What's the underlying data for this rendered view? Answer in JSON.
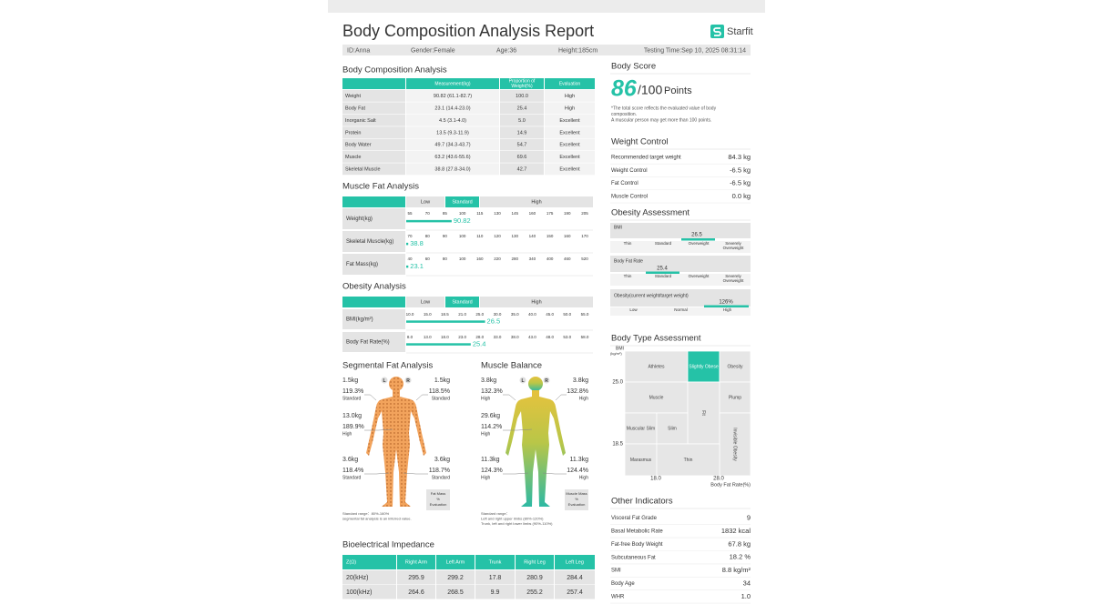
{
  "header": {
    "title": "Body Composition Analysis Report",
    "brand": "Starfit"
  },
  "info": [
    "ID:Anna",
    "Gender:Female",
    "Age:36",
    "Height:185cm",
    "Testing Time:Sep 10, 2025 08:31:14"
  ],
  "composition": {
    "title": "Body Composition Analysis",
    "columns": [
      "Measurement(kg)",
      [
        "Proportion of",
        "Weight(%)"
      ],
      "Evaluation"
    ],
    "rows": [
      [
        "Weight",
        "90.82 (61.1-82.7)",
        "100.0",
        "High"
      ],
      [
        "Body Fat",
        "23.1 (14.4-23.0)",
        "25.4",
        "High"
      ],
      [
        "Inorganic Salt",
        "4.5 (3.1-4.0)",
        "5.0",
        "Excellent"
      ],
      [
        "Protein",
        "13.5 (9.3-11.9)",
        "14.9",
        "Excellent"
      ],
      [
        "Body Water",
        "49.7 (34.3-43.7)",
        "54.7",
        "Excellent"
      ],
      [
        "Muscle",
        "63.2 (43.6-55.6)",
        "69.6",
        "Excellent"
      ],
      [
        "Skeletal Muscle",
        "38.8 (27.8-34.0)",
        "42.7",
        "Excellent"
      ]
    ]
  },
  "muscle_fat": {
    "title": "Muscle Fat Analysis",
    "levels": [
      "Low",
      "Standard",
      "High"
    ],
    "rows": [
      {
        "label": "Weight(kg)",
        "ticks": [
          "55",
          "70",
          "85",
          "100",
          "115",
          "130",
          "145",
          "160",
          "175",
          "190",
          "205"
        ],
        "value": 90.82
      },
      {
        "label": "Skeletal Muscle(kg)",
        "ticks": [
          "70",
          "80",
          "90",
          "100",
          "110",
          "120",
          "130",
          "140",
          "150",
          "160",
          "170"
        ],
        "value": 38.8
      },
      {
        "label": "Fat Mass(kg)",
        "ticks": [
          "40",
          "60",
          "80",
          "100",
          "160",
          "220",
          "280",
          "340",
          "400",
          "460",
          "520"
        ],
        "value": 23.1
      }
    ]
  },
  "obesity_analysis": {
    "title": "Obesity Analysis",
    "levels": [
      "Low",
      "Standard",
      "High"
    ],
    "rows": [
      {
        "label": "BMI(kg/m²)",
        "ticks": [
          "10.0",
          "15.0",
          "18.5",
          "21.0",
          "25.0",
          "30.0",
          "35.0",
          "40.0",
          "45.0",
          "50.0",
          "55.0"
        ],
        "value": 26.5
      },
      {
        "label": "Body Fat Rate(%)",
        "ticks": [
          "8.0",
          "13.0",
          "18.0",
          "23.0",
          "28.0",
          "33.0",
          "38.0",
          "43.0",
          "48.0",
          "53.0",
          "58.0"
        ],
        "value": 25.4
      }
    ]
  },
  "segmental_fat": {
    "title": "Segmental Fat Analysis",
    "sides": [
      "L",
      "R"
    ],
    "parts": [
      {
        "mass": "1.5kg",
        "percent": "119.3%",
        "evaluation": "Standard"
      },
      {
        "mass": "1.5kg",
        "percent": "118.5%",
        "evaluation": "Standard"
      },
      {
        "mass": "13.0kg",
        "percent": "189.9%",
        "evaluation": "High"
      },
      {
        "mass": "3.6kg",
        "percent": "118.4%",
        "evaluation": "Standard"
      },
      {
        "mass": "3.6kg",
        "percent": "118.7%",
        "evaluation": "Standard"
      }
    ],
    "legend": [
      "Fat Mass",
      "%",
      "Evaluation"
    ],
    "notes": [
      "Standard range：80%-160%",
      "segmental fat analysis is an inferred value."
    ]
  },
  "muscle_balance": {
    "title": "Muscle Balance",
    "sides": [
      "L",
      "R"
    ],
    "parts": [
      {
        "mass": "3.8kg",
        "percent": "132.3%",
        "evaluation": "High"
      },
      {
        "mass": "3.8kg",
        "percent": "132.8%",
        "evaluation": "High"
      },
      {
        "mass": "29.6kg",
        "percent": "114.2%",
        "evaluation": "High"
      },
      {
        "mass": "11.3kg",
        "percent": "124.3%",
        "evaluation": "High"
      },
      {
        "mass": "11.3kg",
        "percent": "124.4%",
        "evaluation": "High"
      }
    ],
    "legend": [
      "Muscle Mass",
      "%",
      "Evaluation"
    ],
    "notes": [
      "Standard range：",
      "Left and right upper limbs (80%-120%)",
      "Trunk, left and right lower limbs (90%-110%)"
    ]
  },
  "impedance": {
    "title": "Bioelectrical Impedance",
    "columns": [
      "Z(Ω)",
      "Right Arm",
      "Left Arm",
      "Trunk",
      "Right Leg",
      "Left Leg"
    ],
    "rows": [
      [
        "20(kHz)",
        "295.9",
        "299.2",
        "17.8",
        "280.9",
        "284.4"
      ],
      [
        "100(kHz)",
        "264.6",
        "268.5",
        "9.9",
        "255.2",
        "257.4"
      ]
    ]
  },
  "body_score": {
    "title": "Body Score",
    "score": 86,
    "max": "/100",
    "unit": "Points",
    "notes": [
      "*The total score reflects the evaluated value of body",
      "composition.",
      "A muscular person may get more than 100 points."
    ]
  },
  "weight_control": {
    "title": "Weight Control",
    "rows": [
      [
        "Recommended target weight",
        "84.3 kg"
      ],
      [
        "Weight Control",
        "-6.5 kg"
      ],
      [
        "Fat Control",
        "-6.5 kg"
      ],
      [
        "Muscle Control",
        "0.0 kg"
      ]
    ]
  },
  "obesity_assessment": {
    "title": "Obesity Assessment",
    "items": [
      {
        "label": "BMI",
        "value": 26.5,
        "levels": [
          "Thin",
          "Standard",
          "Overweight",
          [
            "Severely",
            "Overweight"
          ]
        ]
      },
      {
        "label": "Body Fat Rate",
        "value": 25.4,
        "levels": [
          "Thin",
          "Standard",
          "Overweight",
          [
            "Severely",
            "Overweight"
          ]
        ]
      },
      {
        "label": "Obesity(current weight/target weight)",
        "value": 126,
        "value_label": "126%",
        "levels": [
          "Low",
          "Normal",
          "High"
        ]
      }
    ]
  },
  "body_type": {
    "title": "Body Type Assessment",
    "y_label": [
      "BMI",
      "(kg/m²)"
    ],
    "x_label": "Body Fat Rate(%)",
    "yticks": [
      "25.0",
      "18.5"
    ],
    "xticks": [
      "18.0",
      "28.0"
    ],
    "cells": [
      {
        "label": "Athletes"
      },
      {
        "label": "Slightly Obese",
        "selected": true
      },
      {
        "label": "Obesity"
      },
      {
        "label": "Muscle"
      },
      {
        "label": "Fit"
      },
      {
        "label": "Plump"
      },
      {
        "label": "Muscular Slim"
      },
      {
        "label": "Slim"
      },
      {
        "label": "Invisible Obesity"
      },
      {
        "label": "Marasmus"
      },
      {
        "label": "Thin"
      }
    ]
  },
  "other": {
    "title": "Other Indicators",
    "rows": [
      [
        "Visceral Fat Grade",
        "9"
      ],
      [
        "Basal Metabolic Rate",
        "1832 kcal"
      ],
      [
        "Fat-free Body Weight",
        "67.8 kg"
      ],
      [
        "Subcutaneous Fat",
        "18.2 %"
      ],
      [
        "SMI",
        "8.8 kg/m²"
      ],
      [
        "Body Age",
        "34"
      ],
      [
        "WHR",
        "1.0"
      ]
    ]
  }
}
